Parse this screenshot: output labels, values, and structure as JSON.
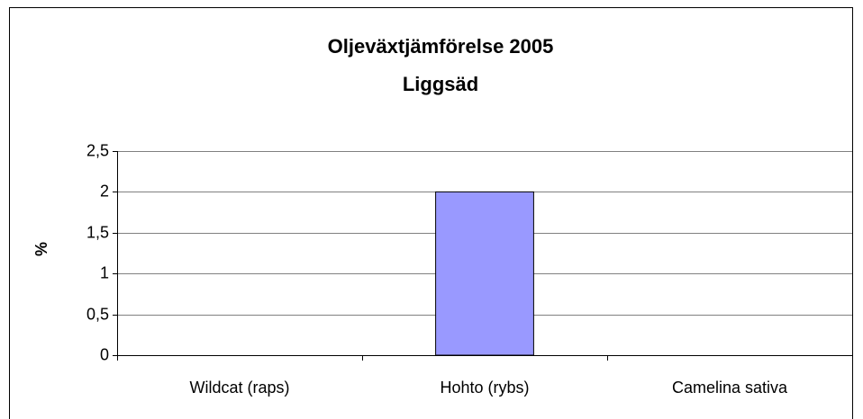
{
  "chart_data": {
    "type": "bar",
    "title": [
      "Oljeväxtjämförelse 2005",
      "Liggsäd"
    ],
    "y_label": "%",
    "categories": [
      "Wildcat (raps)",
      "Hohto (rybs)",
      "Camelina sativa"
    ],
    "values": [
      0,
      2,
      0
    ],
    "color": "#9999ff",
    "ylim": [
      0,
      2.5
    ],
    "yticks": [
      0,
      {
        "value": 0.5,
        "label": "0,5"
      },
      1,
      {
        "value": 1.5,
        "label": "1,5"
      },
      2,
      {
        "value": 2.5,
        "label": "2,5"
      }
    ],
    "grid": true
  }
}
